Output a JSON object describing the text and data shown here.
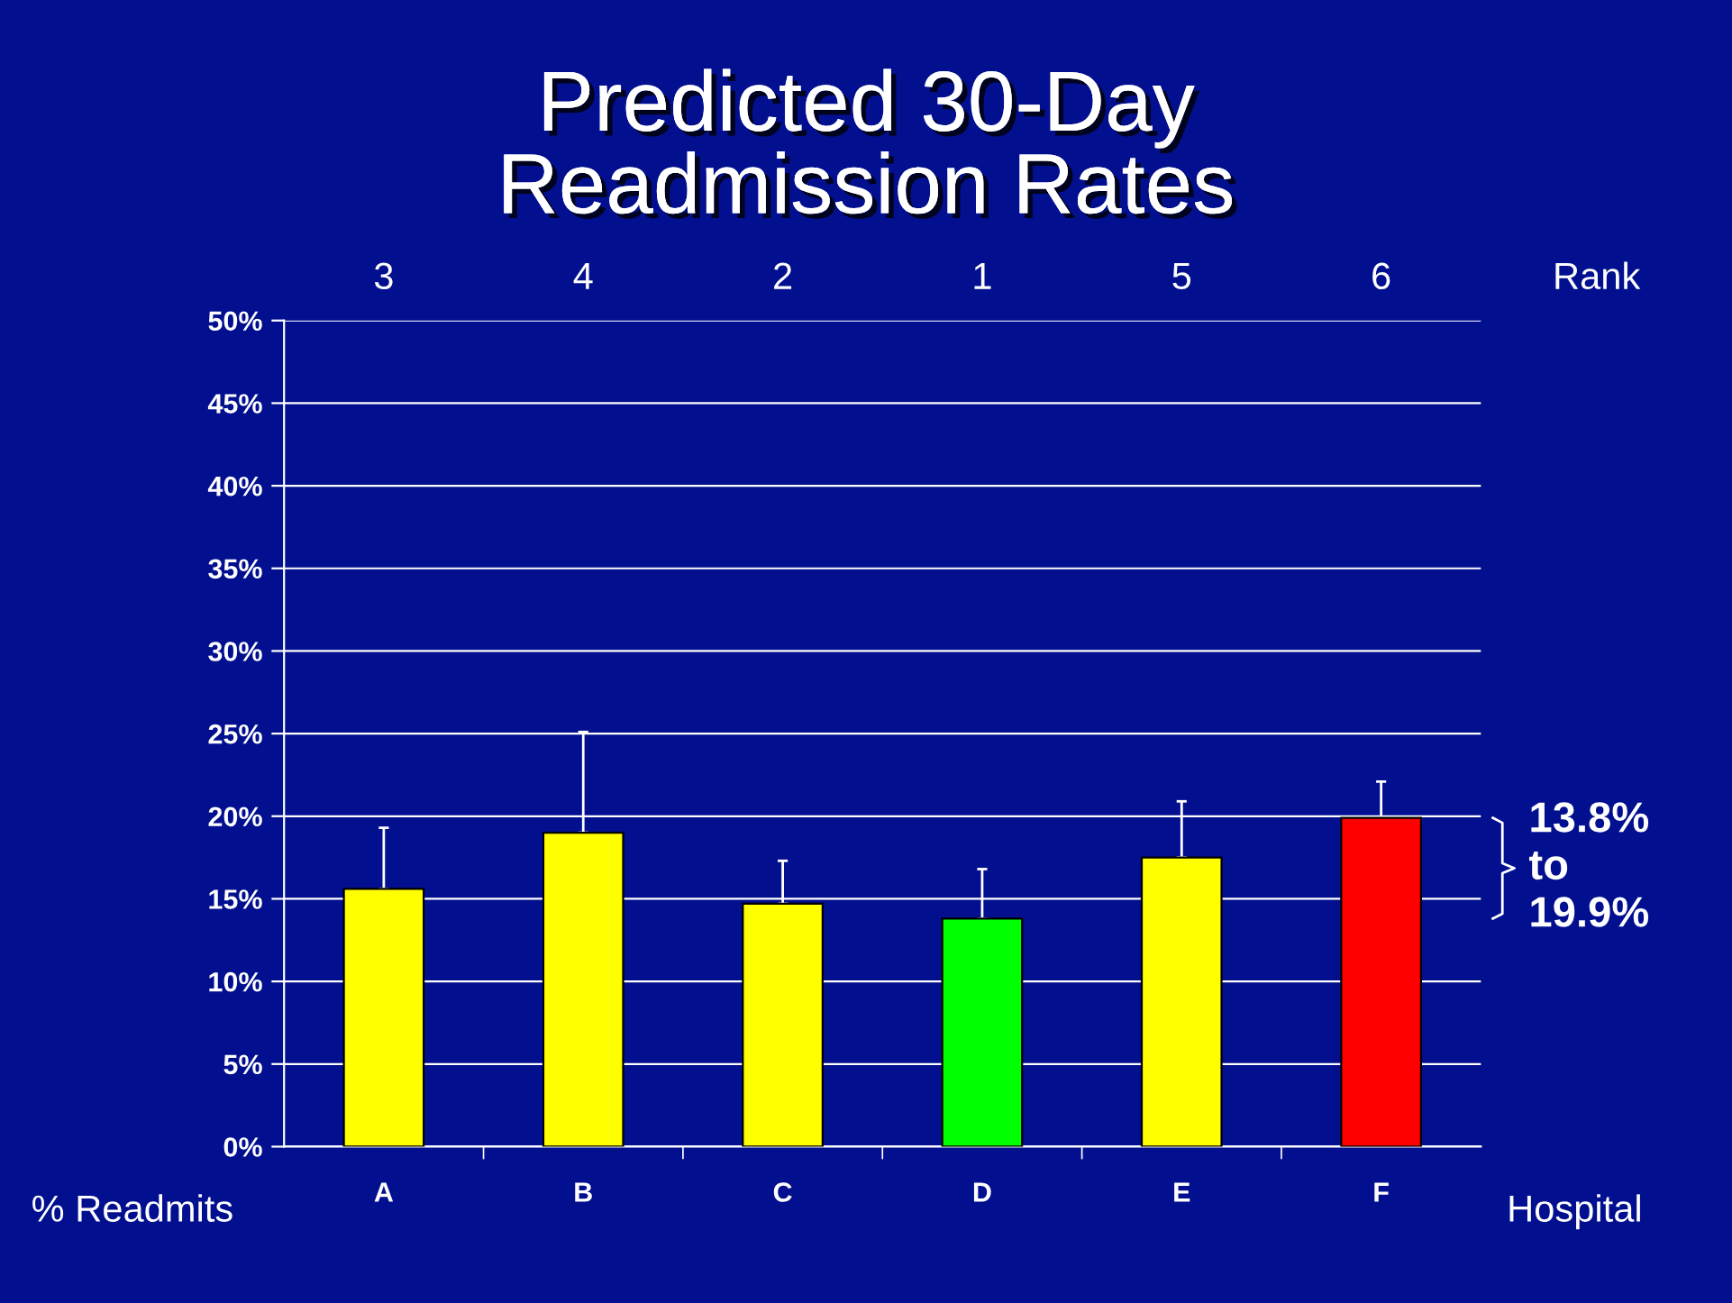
{
  "chart_data": {
    "type": "bar",
    "title": "Predicted 30-Day\nReadmission Rates",
    "xlabel": "Hospital",
    "ylabel": "% Readmits",
    "categories": [
      "A",
      "B",
      "C",
      "D",
      "E",
      "F"
    ],
    "values": [
      15.6,
      19.0,
      14.7,
      13.8,
      17.5,
      19.9
    ],
    "colors": [
      "#ffff00",
      "#ffff00",
      "#ffff00",
      "#00ff00",
      "#ffff00",
      "#ff0000"
    ],
    "errors": [
      [
        15.6,
        19.3
      ],
      [
        19.0,
        25.1
      ],
      [
        14.7,
        17.3
      ],
      [
        13.8,
        16.8
      ],
      [
        17.5,
        20.9
      ],
      [
        19.9,
        22.1
      ]
    ],
    "ylim": [
      0,
      50
    ],
    "yticks": [
      {
        "value": 0,
        "label": "0%"
      },
      {
        "value": 5,
        "label": "5%"
      },
      {
        "value": 10,
        "label": "10%"
      },
      {
        "value": 15,
        "label": "15%"
      },
      {
        "value": 20,
        "label": "20%"
      },
      {
        "value": 25,
        "label": "25%"
      },
      {
        "value": 30,
        "label": "30%"
      },
      {
        "value": 35,
        "label": "35%"
      },
      {
        "value": 40,
        "label": "40%"
      },
      {
        "value": 45,
        "label": "45%"
      },
      {
        "value": 50,
        "label": "50%"
      }
    ],
    "grid": "y",
    "annotations": [
      "3",
      "4",
      "2",
      "1",
      "5",
      "6",
      "Rank",
      "13.8%\nto\n19.9%"
    ]
  }
}
